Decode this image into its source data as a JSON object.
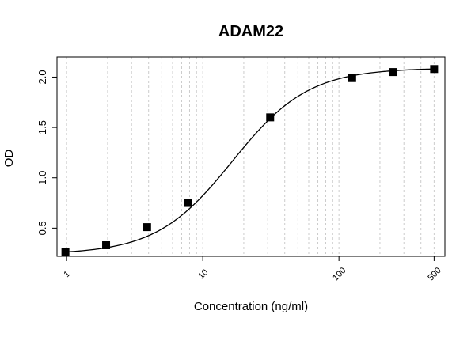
{
  "chart_data": {
    "type": "scatter",
    "title": "ADAM22",
    "xlabel": "Concentration (ng/ml)",
    "ylabel": "OD",
    "x_scale": "log",
    "xlim": [
      0.85,
      600
    ],
    "ylim": [
      0.22,
      2.2
    ],
    "x_ticks": [
      1,
      10,
      100,
      500
    ],
    "x_tick_labels": [
      "1",
      "10",
      "100",
      "500"
    ],
    "y_ticks": [
      0.5,
      1.0,
      1.5,
      2.0
    ],
    "y_tick_labels": [
      "0.5",
      "1.0",
      "1.5",
      "2.0"
    ],
    "grid": "vertical dashed at log minor ticks",
    "legend": "none",
    "series": [
      {
        "marker": "square",
        "color": "#000000",
        "x": [
          0.98,
          1.95,
          3.9,
          7.8,
          31.25,
          125,
          250,
          500
        ],
        "y": [
          0.26,
          0.33,
          0.51,
          0.75,
          1.6,
          1.99,
          2.05,
          2.08
        ]
      }
    ],
    "fit_curve": {
      "type": "4PL",
      "color": "#000000",
      "bottom": 0.24,
      "top": 2.09,
      "ec50": 16.5,
      "hill": 1.55
    }
  }
}
